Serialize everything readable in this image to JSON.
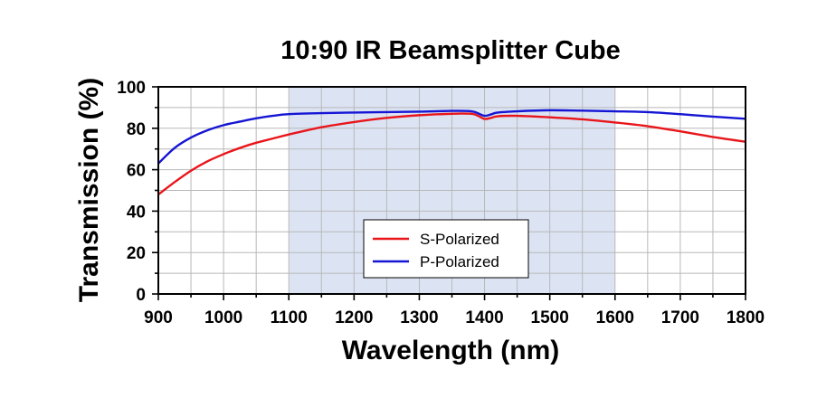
{
  "chart_data": {
    "type": "line",
    "title": "10:90 IR Beamsplitter Cube",
    "xlabel": "Wavelength (nm)",
    "ylabel": "Transmission (%)",
    "xlim": [
      900,
      1800
    ],
    "ylim": [
      0,
      100
    ],
    "xticks": [
      900,
      1000,
      1100,
      1200,
      1300,
      1400,
      1500,
      1600,
      1700,
      1800
    ],
    "yticks": [
      0,
      20,
      40,
      60,
      80,
      100
    ],
    "grid": true,
    "legend_position": "bottom-center",
    "highlight_band": {
      "x_start": 1100,
      "x_end": 1600,
      "color": "#dce4f4"
    },
    "series": [
      {
        "name": "S-Polarized",
        "color": "#e8161b",
        "x": [
          900,
          925,
          950,
          975,
          1000,
          1025,
          1050,
          1075,
          1100,
          1150,
          1200,
          1250,
          1300,
          1350,
          1380,
          1390,
          1400,
          1410,
          1420,
          1450,
          1500,
          1550,
          1600,
          1650,
          1700,
          1750,
          1800
        ],
        "y": [
          48,
          54,
          59.5,
          64,
          67.5,
          70.5,
          73,
          75,
          77,
          80.5,
          83,
          85,
          86.3,
          87,
          87,
          86,
          84.5,
          85,
          85.8,
          86,
          85.3,
          84.3,
          82.8,
          81,
          78.5,
          75.8,
          73.5
        ]
      },
      {
        "name": "P-Polarized",
        "color": "#1515d4",
        "x": [
          900,
          925,
          950,
          975,
          1000,
          1025,
          1050,
          1075,
          1100,
          1150,
          1200,
          1250,
          1300,
          1350,
          1380,
          1390,
          1400,
          1410,
          1420,
          1450,
          1500,
          1550,
          1600,
          1650,
          1700,
          1750,
          1800
        ],
        "y": [
          63,
          70.5,
          75.5,
          79,
          81.5,
          83.2,
          84.8,
          86,
          86.8,
          87.3,
          87.6,
          87.8,
          88,
          88.4,
          88.2,
          87.2,
          86,
          86.7,
          87.6,
          88.2,
          88.7,
          88.5,
          88.2,
          87.8,
          86.8,
          85.6,
          84.6
        ]
      }
    ]
  }
}
